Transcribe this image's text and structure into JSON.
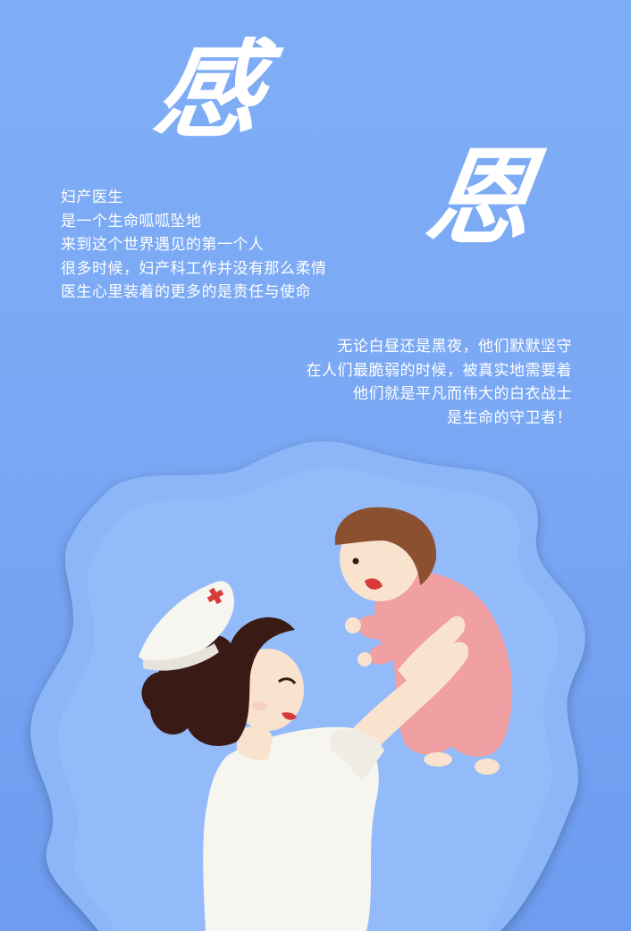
{
  "title": {
    "char1": "感",
    "char2": "恩"
  },
  "paragraph_left": {
    "lines": [
      "妇产医生",
      "是一个生命呱呱坠地",
      "来到这个世界遇见的第一个人",
      "很多时候，妇产科工作并没有那么柔情",
      "医生心里装着的更多的是责任与使命"
    ]
  },
  "paragraph_right": {
    "lines": [
      "无论白昼还是黑夜，他们默默坚守",
      "在人们最脆弱的时候，被真实地需要着",
      "他们就是平凡而伟大的白衣战士",
      "是生命的守卫者！"
    ]
  },
  "colors": {
    "background_top": "#7fadf5",
    "background_bottom": "#6d9cf0",
    "cloud_shape": "#8cb6f8",
    "text": "#ffffff",
    "nurse_uniform": "#f7f5f0",
    "nurse_hair": "#3a1a14",
    "cross": "#d83a3a",
    "baby_clothes": "#f0a0a3",
    "baby_hair": "#8a5030",
    "skin": "#f9e3cf"
  },
  "illustration": {
    "subjects": [
      "nurse-figure",
      "baby-figure"
    ]
  }
}
